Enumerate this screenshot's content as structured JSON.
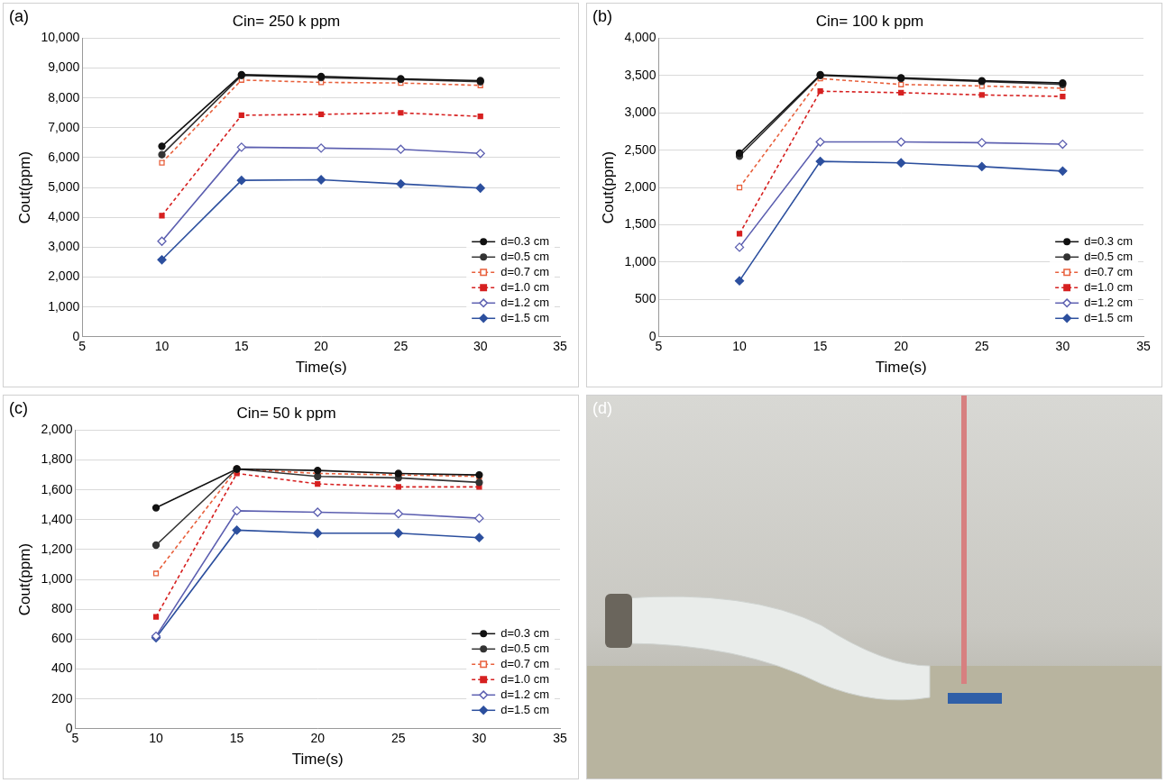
{
  "chart_data": [
    {
      "type": "line",
      "panel_label": "(a)",
      "title": "Cin= 250 k ppm",
      "x_label": "Time(s)",
      "y_label": "Cout(ppm)",
      "x": [
        10,
        15,
        20,
        25,
        30
      ],
      "xlim": [
        5,
        35
      ],
      "xticks": [
        5,
        10,
        15,
        20,
        25,
        30,
        35
      ],
      "ylim": [
        0,
        10000
      ],
      "yticks": [
        0,
        {
          "value": 1000,
          "label": "1,000"
        },
        {
          "value": 2000,
          "label": "2,000"
        },
        {
          "value": 3000,
          "label": "3,000"
        },
        {
          "value": 4000,
          "label": "4,000"
        },
        {
          "value": 5000,
          "label": "5,000"
        },
        {
          "value": 6000,
          "label": "6,000"
        },
        {
          "value": 7000,
          "label": "7,000"
        },
        {
          "value": 8000,
          "label": "8,000"
        },
        {
          "value": 9000,
          "label": "9,000"
        },
        {
          "value": 10000,
          "label": "10,000"
        }
      ],
      "grid": "y",
      "legend": "lower right",
      "series": [
        {
          "name": "d=0.3 cm",
          "color": "#111111",
          "marker": "circle",
          "line_style": "solid",
          "values": [
            6380,
            8780,
            8720,
            8640,
            8580
          ]
        },
        {
          "name": "d=0.5 cm",
          "color": "#333333",
          "marker": "circle",
          "line_style": "solid",
          "values": [
            6100,
            8750,
            8680,
            8620,
            8540
          ]
        },
        {
          "name": "d=0.7 cm",
          "color": "#e8603c",
          "marker": "square_open",
          "line_style": "dashed",
          "values": [
            5830,
            8600,
            8520,
            8500,
            8420
          ]
        },
        {
          "name": "d=1.0 cm",
          "color": "#d62020",
          "marker": "square",
          "line_style": "dashed",
          "values": [
            4060,
            7420,
            7450,
            7500,
            7380
          ]
        },
        {
          "name": "d=1.2 cm",
          "color": "#5c5fb0",
          "marker": "diamond_open",
          "line_style": "solid",
          "values": [
            3200,
            6350,
            6320,
            6280,
            6140
          ]
        },
        {
          "name": "d=1.5 cm",
          "color": "#2c4f9e",
          "marker": "diamond",
          "line_style": "solid",
          "values": [
            2580,
            5240,
            5260,
            5120,
            4980
          ]
        }
      ]
    },
    {
      "type": "line",
      "panel_label": "(b)",
      "title": "Cin= 100 k ppm",
      "x_label": "Time(s)",
      "y_label": "Cout(ppm)",
      "x": [
        10,
        15,
        20,
        25,
        30
      ],
      "xlim": [
        5,
        35
      ],
      "xticks": [
        5,
        10,
        15,
        20,
        25,
        30,
        35
      ],
      "ylim": [
        0,
        4000
      ],
      "yticks": [
        0,
        500,
        {
          "value": 1000,
          "label": "1,000"
        },
        {
          "value": 1500,
          "label": "1,500"
        },
        {
          "value": 2000,
          "label": "2,000"
        },
        {
          "value": 2500,
          "label": "2,500"
        },
        {
          "value": 3000,
          "label": "3,000"
        },
        {
          "value": 3500,
          "label": "3,500"
        },
        {
          "value": 4000,
          "label": "4,000"
        }
      ],
      "grid": "y",
      "legend": "lower right",
      "series": [
        {
          "name": "d=0.3 cm",
          "color": "#111111",
          "marker": "circle",
          "line_style": "solid",
          "values": [
            2460,
            3510,
            3470,
            3430,
            3400
          ]
        },
        {
          "name": "d=0.5 cm",
          "color": "#333333",
          "marker": "circle",
          "line_style": "solid",
          "values": [
            2420,
            3500,
            3460,
            3420,
            3380
          ]
        },
        {
          "name": "d=0.7 cm",
          "color": "#e8603c",
          "marker": "square_open",
          "line_style": "dashed",
          "values": [
            2000,
            3460,
            3380,
            3360,
            3330
          ]
        },
        {
          "name": "d=1.0 cm",
          "color": "#d62020",
          "marker": "square",
          "line_style": "dashed",
          "values": [
            1380,
            3290,
            3270,
            3240,
            3220
          ]
        },
        {
          "name": "d=1.2 cm",
          "color": "#5c5fb0",
          "marker": "diamond_open",
          "line_style": "solid",
          "values": [
            1200,
            2610,
            2610,
            2600,
            2580
          ]
        },
        {
          "name": "d=1.5 cm",
          "color": "#2c4f9e",
          "marker": "diamond",
          "line_style": "solid",
          "values": [
            750,
            2350,
            2330,
            2280,
            2220
          ]
        }
      ]
    },
    {
      "type": "line",
      "panel_label": "(c)",
      "title": "Cin= 50 k ppm",
      "x_label": "Time(s)",
      "y_label": "Cout(ppm)",
      "x": [
        10,
        15,
        20,
        25,
        30
      ],
      "xlim": [
        5,
        35
      ],
      "xticks": [
        5,
        10,
        15,
        20,
        25,
        30,
        35
      ],
      "ylim": [
        0,
        2000
      ],
      "yticks": [
        0,
        200,
        400,
        600,
        800,
        {
          "value": 1000,
          "label": "1,000"
        },
        {
          "value": 1200,
          "label": "1,200"
        },
        {
          "value": 1400,
          "label": "1,400"
        },
        {
          "value": 1600,
          "label": "1,600"
        },
        {
          "value": 1800,
          "label": "1,800"
        },
        {
          "value": 2000,
          "label": "2,000"
        }
      ],
      "grid": "y",
      "legend": "lower right",
      "series": [
        {
          "name": "d=0.3 cm",
          "color": "#111111",
          "marker": "circle",
          "line_style": "solid",
          "values": [
            1480,
            1740,
            1730,
            1710,
            1700
          ]
        },
        {
          "name": "d=0.5 cm",
          "color": "#333333",
          "marker": "circle",
          "line_style": "solid",
          "values": [
            1230,
            1740,
            1690,
            1680,
            1650
          ]
        },
        {
          "name": "d=0.7 cm",
          "color": "#e8603c",
          "marker": "square_open",
          "line_style": "dashed",
          "values": [
            1040,
            1740,
            1710,
            1700,
            1690
          ]
        },
        {
          "name": "d=1.0 cm",
          "color": "#d62020",
          "marker": "square",
          "line_style": "dashed",
          "values": [
            750,
            1710,
            1640,
            1620,
            1620
          ]
        },
        {
          "name": "d=1.2 cm",
          "color": "#5c5fb0",
          "marker": "diamond_open",
          "line_style": "solid",
          "values": [
            620,
            1460,
            1450,
            1440,
            1410
          ]
        },
        {
          "name": "d=1.5 cm",
          "color": "#2c4f9e",
          "marker": "diamond",
          "line_style": "solid",
          "values": [
            610,
            1330,
            1310,
            1310,
            1280
          ]
        }
      ]
    }
  ],
  "photo_panel": {
    "panel_label": "(d)"
  }
}
